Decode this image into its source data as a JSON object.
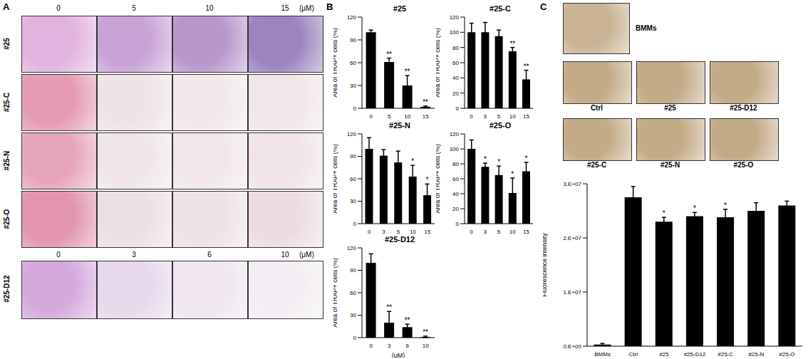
{
  "figure": {
    "panel_labels": [
      "A",
      "B",
      "C"
    ],
    "panel_a": {
      "rows": [
        "#25",
        "#25-C",
        "#25-N",
        "#25-O"
      ],
      "header": [
        "0",
        "5",
        "10",
        "15"
      ],
      "unit": "(μM)",
      "last_row": "#25-D12",
      "last_header": [
        "0",
        "3",
        "6",
        "10"
      ]
    },
    "panel_c": {
      "top_image": "BMMs",
      "images": [
        "Ctrl",
        "#25",
        "#25-D12",
        "#25-C",
        "#25-N",
        "#25-O"
      ]
    }
  },
  "chart_data": [
    {
      "type": "bar",
      "title": "#25",
      "y_label": "Area of TRAP+ cells (%)",
      "categories": [
        "0",
        "5",
        "10",
        "15"
      ],
      "values": [
        100,
        61,
        30,
        2
      ],
      "errors": [
        3,
        5,
        13,
        1
      ],
      "significance": [
        null,
        "**",
        "**",
        "**"
      ],
      "color": "#000000",
      "ylim": [
        0,
        120
      ],
      "yticks": [
        0,
        30,
        60,
        90,
        120
      ]
    },
    {
      "type": "bar",
      "title": "#25-C",
      "y_label": "Area of TRAP+ cells (%)",
      "categories": [
        "0",
        "3",
        "5",
        "10",
        "15"
      ],
      "values": [
        100,
        100,
        95,
        75,
        38
      ],
      "errors": [
        12,
        13,
        8,
        5,
        12
      ],
      "significance": [
        null,
        null,
        null,
        "**",
        "**"
      ],
      "color": "#000000",
      "ylim": [
        0,
        120
      ],
      "yticks": [
        0,
        20,
        40,
        60,
        80,
        100,
        120
      ]
    },
    {
      "type": "bar",
      "title": "#25-N",
      "y_label": "Area of TRAP+ cells (%)",
      "categories": [
        "0",
        "3",
        "5",
        "10",
        "15"
      ],
      "values": [
        100,
        91,
        82,
        63,
        38
      ],
      "errors": [
        15,
        8,
        15,
        15,
        15
      ],
      "significance": [
        null,
        null,
        null,
        "*",
        "*"
      ],
      "color": "#000000",
      "ylim": [
        0,
        120
      ],
      "yticks": [
        0,
        30,
        60,
        90,
        120
      ]
    },
    {
      "type": "bar",
      "title": "#25-O",
      "y_label": "Area of TRAP+ cells (%)",
      "categories": [
        "0",
        "3",
        "5",
        "10",
        "15"
      ],
      "values": [
        100,
        76,
        65,
        41,
        70
      ],
      "errors": [
        12,
        5,
        12,
        20,
        12
      ],
      "significance": [
        null,
        "*",
        "*",
        "*",
        "*"
      ],
      "color": "#000000",
      "ylim": [
        0,
        120
      ],
      "yticks": [
        0,
        20,
        40,
        60,
        80,
        100,
        120
      ]
    },
    {
      "type": "bar",
      "title": "#25-D12",
      "y_label": "Area of TRAP+ cells (%)",
      "x_label": "(μM)",
      "categories": [
        "0",
        "3",
        "6",
        "10"
      ],
      "values": [
        100,
        20,
        14,
        1
      ],
      "errors": [
        12,
        15,
        4,
        1
      ],
      "significance": [
        null,
        "**",
        "**",
        "**"
      ],
      "color": "#000000",
      "ylim": [
        0,
        120
      ],
      "yticks": [
        0,
        30,
        60,
        90,
        120
      ]
    },
    {
      "type": "bar",
      "y_label": "Fluorescence intensity",
      "categories": [
        "BMMs",
        "Ctrl",
        "#25",
        "#25-D12",
        "#25-C",
        "#25-N",
        "#25-O"
      ],
      "values": [
        300000,
        27500000,
        23000000,
        24000000,
        23800000,
        25000000,
        26000000
      ],
      "errors": [
        200000,
        2000000,
        800000,
        700000,
        1500000,
        1500000,
        800000
      ],
      "significance": [
        null,
        null,
        "*",
        "*",
        "*",
        null,
        null
      ],
      "color": "#000000",
      "ylim": [
        0,
        30000000
      ],
      "yticks": [
        {
          "value": 0,
          "label": "0.E+00"
        },
        {
          "value": 10000000,
          "label": "1.E+07"
        },
        {
          "value": 20000000,
          "label": "2.E+07"
        },
        {
          "value": 30000000,
          "label": "3.E+07"
        }
      ]
    }
  ]
}
